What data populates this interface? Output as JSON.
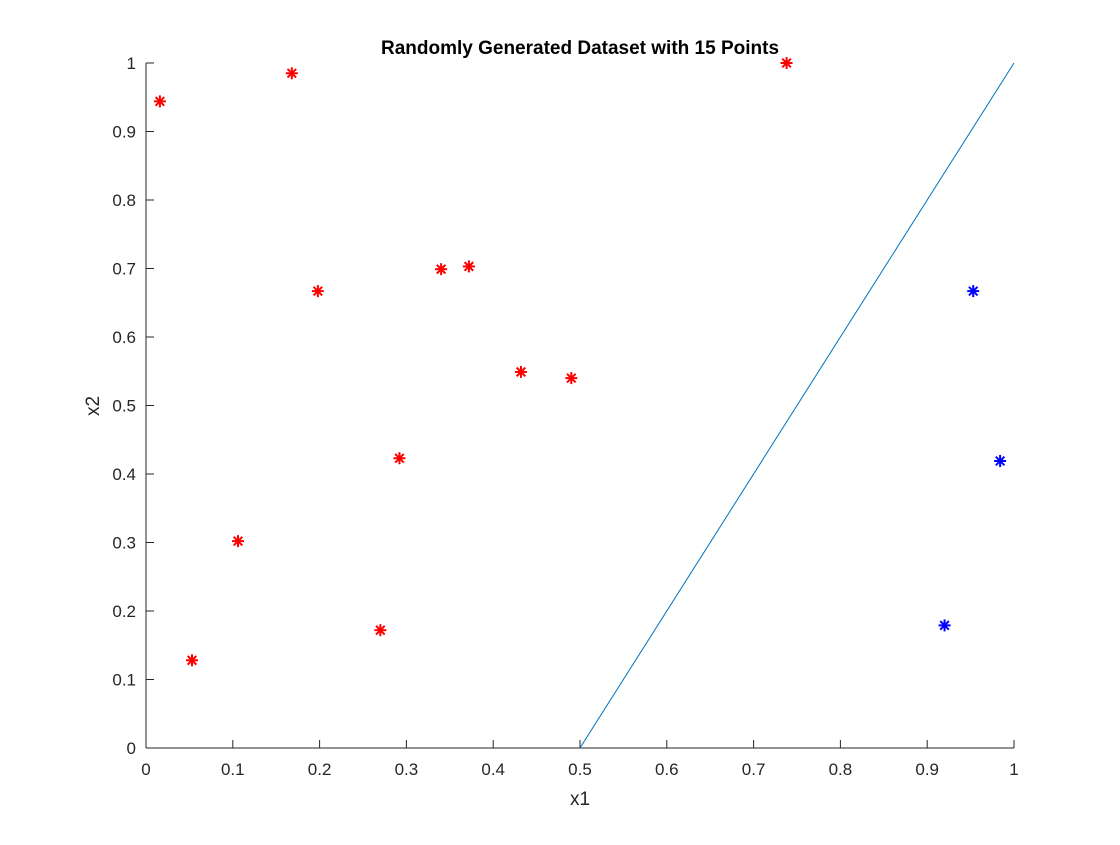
{
  "chart_data": {
    "type": "scatter",
    "title": "Randomly Generated Dataset with 15 Points",
    "xlabel": "x1",
    "ylabel": "x2",
    "xlim": [
      0,
      1
    ],
    "ylim": [
      0,
      1
    ],
    "xticks": [
      "0",
      "0.1",
      "0.2",
      "0.3",
      "0.4",
      "0.5",
      "0.6",
      "0.7",
      "0.8",
      "0.9",
      "1"
    ],
    "yticks": [
      "0",
      "0.1",
      "0.2",
      "0.3",
      "0.4",
      "0.5",
      "0.6",
      "0.7",
      "0.8",
      "0.9",
      "1"
    ],
    "grid": false,
    "legend": "none",
    "marker": "asterisk",
    "series": [
      {
        "color": "#ff0000",
        "points": [
          {
            "x": 0.016,
            "y": 0.944
          },
          {
            "x": 0.168,
            "y": 0.985
          },
          {
            "x": 0.198,
            "y": 0.667
          },
          {
            "x": 0.34,
            "y": 0.699
          },
          {
            "x": 0.372,
            "y": 0.703
          },
          {
            "x": 0.432,
            "y": 0.549
          },
          {
            "x": 0.49,
            "y": 0.54
          },
          {
            "x": 0.292,
            "y": 0.423
          },
          {
            "x": 0.106,
            "y": 0.302
          },
          {
            "x": 0.27,
            "y": 0.172
          },
          {
            "x": 0.053,
            "y": 0.128
          },
          {
            "x": 0.738,
            "y": 1.0
          }
        ]
      },
      {
        "color": "#0000ff",
        "points": [
          {
            "x": 0.953,
            "y": 0.667
          },
          {
            "x": 0.984,
            "y": 0.419
          },
          {
            "x": 0.92,
            "y": 0.179
          }
        ]
      }
    ],
    "lines": [
      {
        "color": "#0072bd",
        "x": [
          0.5,
          1.0
        ],
        "y": [
          0.0,
          1.0
        ]
      }
    ]
  }
}
